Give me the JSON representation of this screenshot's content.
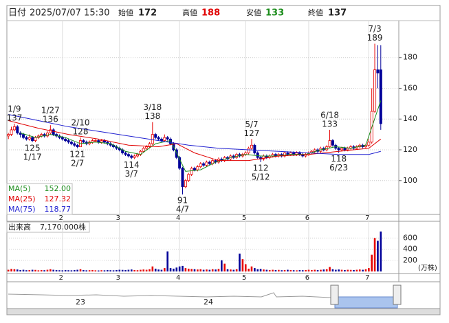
{
  "header": {
    "date_label": "日付",
    "datetime": "2025/07/07 15:30",
    "open_label": "始値",
    "open": 172,
    "high_label": "高値",
    "high": 188,
    "low_label": "安値",
    "low": 133,
    "close_label": "終値",
    "close": 137
  },
  "chart_data": [
    {
      "type": "candlestick",
      "xlim": [
        -0.5,
        130
      ],
      "ylim": [
        78,
        204
      ],
      "yticks": [
        100,
        120,
        140,
        160,
        180
      ],
      "grid": true,
      "xticks": [
        {
          "value": 18,
          "label": "2"
        },
        {
          "value": 37,
          "label": "3"
        },
        {
          "value": 57,
          "label": "4"
        },
        {
          "value": 79,
          "label": "5"
        },
        {
          "value": 100,
          "label": "6"
        },
        {
          "value": 120,
          "label": "7"
        }
      ],
      "up_color": "#e60000",
      "down_color": "#000099",
      "ohlc": [
        [
          129,
          131,
          127,
          130
        ],
        [
          130,
          135,
          129,
          133
        ],
        [
          133,
          137,
          132,
          135
        ],
        [
          135,
          136,
          130,
          131
        ],
        [
          131,
          132,
          128,
          130
        ],
        [
          130,
          131,
          127,
          128
        ],
        [
          128,
          129,
          126,
          127
        ],
        [
          127,
          130,
          126,
          128
        ],
        [
          128,
          129,
          125,
          126
        ],
        [
          126,
          129,
          125,
          128
        ],
        [
          128,
          130,
          127,
          129
        ],
        [
          129,
          131,
          128,
          130
        ],
        [
          130,
          131,
          128,
          129
        ],
        [
          129,
          132,
          128,
          131
        ],
        [
          131,
          136,
          130,
          133
        ],
        [
          133,
          134,
          129,
          130
        ],
        [
          130,
          131,
          128,
          129
        ],
        [
          129,
          130,
          127,
          128
        ],
        [
          128,
          129,
          126,
          127
        ],
        [
          127,
          128,
          125,
          126
        ],
        [
          126,
          127,
          124,
          125
        ],
        [
          125,
          126,
          123,
          124
        ],
        [
          124,
          125,
          122,
          123
        ],
        [
          123,
          124,
          121,
          122
        ],
        [
          122,
          128,
          122,
          126
        ],
        [
          126,
          127,
          124,
          125
        ],
        [
          125,
          126,
          123,
          124
        ],
        [
          124,
          126,
          123,
          125
        ],
        [
          125,
          127,
          124,
          126
        ],
        [
          126,
          127,
          125,
          126
        ],
        [
          126,
          127,
          124,
          125
        ],
        [
          125,
          127,
          124,
          126
        ],
        [
          126,
          127,
          124,
          125
        ],
        [
          125,
          126,
          123,
          124
        ],
        [
          124,
          125,
          122,
          123
        ],
        [
          123,
          124,
          121,
          122
        ],
        [
          122,
          123,
          120,
          121
        ],
        [
          121,
          122,
          119,
          120
        ],
        [
          120,
          121,
          117,
          118
        ],
        [
          118,
          119,
          116,
          117
        ],
        [
          117,
          118,
          115,
          116
        ],
        [
          116,
          117,
          114,
          115
        ],
        [
          115,
          117,
          114,
          116
        ],
        [
          116,
          118,
          115,
          117
        ],
        [
          117,
          120,
          116,
          119
        ],
        [
          119,
          122,
          118,
          121
        ],
        [
          121,
          123,
          120,
          122
        ],
        [
          122,
          125,
          121,
          124
        ],
        [
          124,
          138,
          123,
          130
        ],
        [
          130,
          131,
          127,
          128
        ],
        [
          128,
          129,
          126,
          127
        ],
        [
          127,
          128,
          125,
          126
        ],
        [
          126,
          130,
          125,
          128
        ],
        [
          128,
          129,
          126,
          127
        ],
        [
          127,
          128,
          123,
          124
        ],
        [
          124,
          125,
          119,
          120
        ],
        [
          120,
          121,
          114,
          115
        ],
        [
          115,
          116,
          107,
          108
        ],
        [
          108,
          109,
          91,
          96
        ],
        [
          96,
          101,
          95,
          100
        ],
        [
          100,
          105,
          99,
          104
        ],
        [
          104,
          109,
          103,
          108
        ],
        [
          108,
          109,
          106,
          107
        ],
        [
          107,
          110,
          106,
          109
        ],
        [
          109,
          112,
          108,
          111
        ],
        [
          111,
          112,
          109,
          110
        ],
        [
          110,
          113,
          109,
          112
        ],
        [
          112,
          113,
          110,
          111
        ],
        [
          111,
          114,
          110,
          113
        ],
        [
          113,
          114,
          111,
          112
        ],
        [
          112,
          115,
          111,
          114
        ],
        [
          114,
          115,
          112,
          113
        ],
        [
          113,
          116,
          112,
          115
        ],
        [
          115,
          116,
          113,
          114
        ],
        [
          114,
          117,
          113,
          116
        ],
        [
          116,
          117,
          114,
          115
        ],
        [
          115,
          118,
          114,
          117
        ],
        [
          117,
          118,
          115,
          116
        ],
        [
          116,
          118,
          115,
          117
        ],
        [
          117,
          119,
          116,
          118
        ],
        [
          118,
          122,
          117,
          121
        ],
        [
          121,
          127,
          120,
          123
        ],
        [
          123,
          124,
          117,
          118
        ],
        [
          118,
          119,
          114,
          115
        ],
        [
          115,
          116,
          112,
          114
        ],
        [
          114,
          117,
          113,
          116
        ],
        [
          116,
          117,
          114,
          115
        ],
        [
          115,
          117,
          114,
          116
        ],
        [
          116,
          118,
          115,
          117
        ],
        [
          117,
          118,
          115,
          116
        ],
        [
          116,
          118,
          115,
          117
        ],
        [
          117,
          118,
          115,
          116
        ],
        [
          116,
          119,
          115,
          118
        ],
        [
          118,
          119,
          116,
          117
        ],
        [
          117,
          119,
          116,
          118
        ],
        [
          118,
          119,
          116,
          117
        ],
        [
          117,
          119,
          116,
          118
        ],
        [
          118,
          119,
          116,
          117
        ],
        [
          117,
          118,
          115,
          116
        ],
        [
          116,
          118,
          115,
          117
        ],
        [
          117,
          119,
          116,
          118
        ],
        [
          118,
          120,
          117,
          119
        ],
        [
          119,
          121,
          118,
          120
        ],
        [
          120,
          121,
          118,
          119
        ],
        [
          119,
          122,
          118,
          121
        ],
        [
          121,
          122,
          119,
          120
        ],
        [
          120,
          123,
          119,
          122
        ],
        [
          122,
          133,
          121,
          126
        ],
        [
          126,
          127,
          122,
          123
        ],
        [
          123,
          124,
          120,
          121
        ],
        [
          121,
          122,
          118,
          120
        ],
        [
          120,
          122,
          119,
          121
        ],
        [
          121,
          122,
          119,
          120
        ],
        [
          120,
          122,
          119,
          121
        ],
        [
          121,
          123,
          120,
          122
        ],
        [
          122,
          123,
          120,
          121
        ],
        [
          121,
          123,
          120,
          122
        ],
        [
          122,
          124,
          121,
          123
        ],
        [
          123,
          124,
          121,
          122
        ],
        [
          122,
          124,
          121,
          123
        ],
        [
          123,
          127,
          122,
          125
        ],
        [
          125,
          160,
          124,
          145
        ],
        [
          145,
          189,
          144,
          172
        ],
        [
          172,
          188,
          160,
          170
        ],
        [
          172,
          188,
          133,
          137
        ]
      ],
      "series": [
        {
          "name": "MA(5)",
          "last": "152.00",
          "color": "#1a8c1a",
          "x": [
            4,
            9,
            14,
            19,
            24,
            29,
            34,
            39,
            44,
            49,
            54,
            59,
            64,
            69,
            74,
            79,
            84,
            89,
            94,
            99,
            104,
            109,
            114,
            119,
            124
          ],
          "values": [
            131,
            128,
            130,
            128,
            124,
            125,
            124,
            119,
            117,
            124,
            126,
            106,
            107,
            112,
            115,
            117,
            116,
            116,
            117,
            117,
            120,
            122,
            121,
            123,
            152
          ]
        },
        {
          "name": "MA(25)",
          "last": "127.32",
          "color": "#e00000",
          "x": [
            0,
            10,
            20,
            30,
            40,
            50,
            56,
            62,
            70,
            80,
            90,
            100,
            110,
            120,
            124
          ],
          "values": [
            139,
            134,
            130,
            127,
            123,
            122,
            124,
            118,
            113,
            113,
            116,
            117,
            119,
            121,
            127
          ]
        },
        {
          "name": "MA(75)",
          "last": "118.77",
          "color": "#2020d0",
          "x": [
            0,
            10,
            20,
            30,
            40,
            50,
            60,
            70,
            80,
            90,
            100,
            110,
            120,
            124
          ],
          "values": [
            143,
            139,
            135,
            132,
            129,
            126,
            123,
            121,
            120,
            119,
            118,
            117,
            117,
            119
          ]
        }
      ],
      "annotations": [
        {
          "date": "1/9",
          "price": 137
        },
        {
          "date": "1/17",
          "price": 125
        },
        {
          "date": "1/27",
          "price": 136
        },
        {
          "date": "2/7",
          "price": 121
        },
        {
          "date": "2/10",
          "price": 128
        },
        {
          "date": "3/7",
          "price": 114
        },
        {
          "date": "3/18",
          "price": 138
        },
        {
          "date": "4/7",
          "price": 91
        },
        {
          "date": "5/7",
          "price": 127
        },
        {
          "date": "5/12",
          "price": 112
        },
        {
          "date": "6/18",
          "price": 133
        },
        {
          "date": "6/23",
          "price": 118
        },
        {
          "date": "7/3",
          "price": 189
        }
      ]
    },
    {
      "type": "volume",
      "title": "出来高",
      "last_volume": "7,170,000株",
      "unit": "(万株)",
      "ylim": [
        0,
        900
      ],
      "yticks": [
        200,
        400,
        600
      ],
      "values": [
        30,
        45,
        40,
        35,
        25,
        30,
        22,
        25,
        30,
        28,
        20,
        25,
        22,
        30,
        40,
        30,
        25,
        22,
        20,
        25,
        22,
        20,
        25,
        30,
        40,
        25,
        20,
        22,
        25,
        20,
        18,
        22,
        20,
        25,
        22,
        20,
        25,
        30,
        28,
        25,
        30,
        35,
        25,
        22,
        30,
        35,
        30,
        40,
        90,
        50,
        35,
        30,
        60,
        360,
        60,
        50,
        70,
        90,
        100,
        60,
        50,
        45,
        40,
        35,
        40,
        30,
        35,
        30,
        40,
        35,
        45,
        200,
        140,
        40,
        35,
        30,
        40,
        320,
        220,
        130,
        50,
        90,
        60,
        40,
        45,
        35,
        30,
        25,
        30,
        25,
        28,
        22,
        25,
        30,
        25,
        22,
        20,
        25,
        22,
        25,
        30,
        25,
        30,
        25,
        30,
        35,
        40,
        80,
        40,
        30,
        35,
        30,
        25,
        30,
        28,
        25,
        30,
        35,
        30,
        40,
        60,
        300,
        600,
        550,
        717
      ]
    },
    {
      "type": "navigator",
      "labels": [
        "23",
        "24"
      ]
    }
  ]
}
